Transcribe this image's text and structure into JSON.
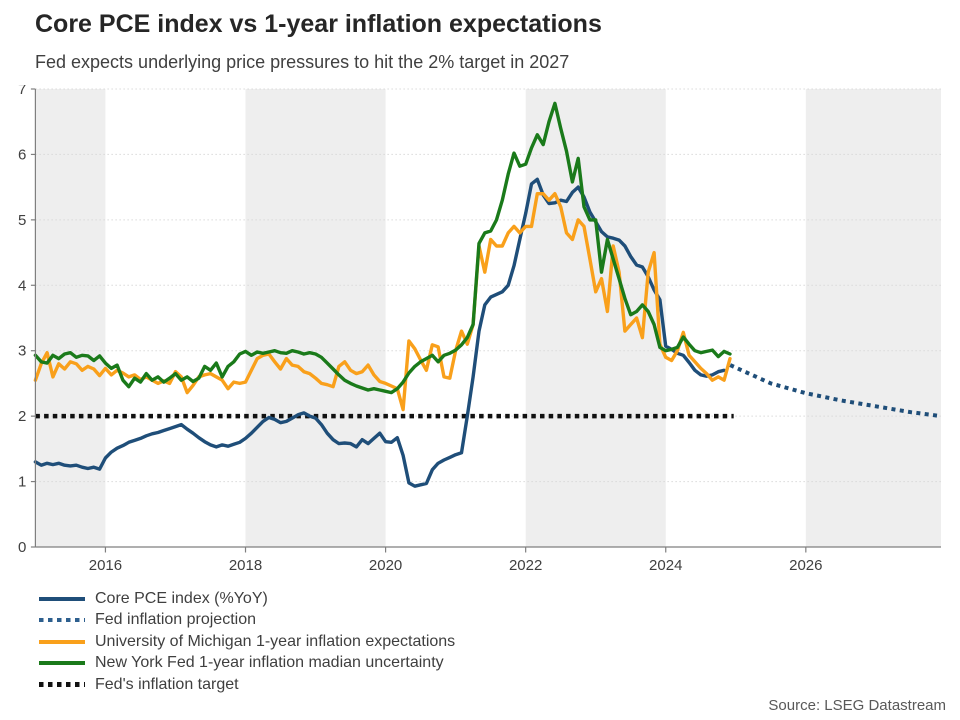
{
  "header": {
    "title": "Core PCE index vs 1-year inflation expectations",
    "subtitle": "Fed expects underlying price pressures to hit the 2% target in 2027"
  },
  "source": "Source: LSEG Datastream",
  "chart_data": {
    "type": "line",
    "title": "Core PCE index vs 1-year inflation expectations",
    "subtitle": "Fed expects underlying price pressures to hit the 2% target in 2027",
    "ylim": [
      0,
      7
    ],
    "x_range": [
      2015,
      2027.93
    ],
    "yticks": [
      0,
      1,
      2,
      3,
      4,
      5,
      6,
      7
    ],
    "xticks": [
      2016,
      2018,
      2020,
      2022,
      2024,
      2026
    ],
    "grid": "horizontal-dotted",
    "band_color": "#eeeeee",
    "bands": [
      [
        2015,
        2016
      ],
      [
        2018,
        2020
      ],
      [
        2022,
        2024
      ],
      [
        2026,
        2027.93
      ]
    ],
    "series": [
      {
        "id": "core-pce-line",
        "name": "Core PCE index (%YoY)",
        "color": "#1f4e79",
        "style": "solid",
        "start_year": 2015,
        "frequency": "monthly",
        "monthly_values": [
          1.3,
          1.25,
          1.28,
          1.26,
          1.28,
          1.25,
          1.24,
          1.25,
          1.22,
          1.2,
          1.22,
          1.19,
          1.36,
          1.45,
          1.51,
          1.55,
          1.6,
          1.63,
          1.66,
          1.7,
          1.73,
          1.75,
          1.78,
          1.81,
          1.84,
          1.87,
          1.8,
          1.74,
          1.67,
          1.61,
          1.56,
          1.53,
          1.56,
          1.54,
          1.57,
          1.6,
          1.66,
          1.74,
          1.83,
          1.92,
          1.98,
          1.95,
          1.9,
          1.92,
          1.97,
          2.02,
          2.05,
          2.0,
          1.97,
          1.87,
          1.74,
          1.64,
          1.58,
          1.59,
          1.58,
          1.53,
          1.64,
          1.58,
          1.66,
          1.74,
          1.61,
          1.6,
          1.67,
          1.4,
          0.98,
          0.93,
          0.95,
          0.97,
          1.18,
          1.28,
          1.33,
          1.37,
          1.41,
          1.44,
          2.0,
          2.6,
          3.3,
          3.7,
          3.82,
          3.86,
          3.9,
          4.0,
          4.3,
          4.7,
          5.1,
          5.55,
          5.62,
          5.38,
          5.25,
          5.26,
          5.3,
          5.28,
          5.42,
          5.5,
          5.35,
          5.12,
          4.97,
          4.82,
          4.74,
          4.72,
          4.69,
          4.6,
          4.44,
          4.31,
          4.28,
          4.13,
          3.93,
          3.78,
          3.07,
          3.02,
          2.96,
          2.93,
          2.82,
          2.7,
          2.63,
          2.61,
          2.63,
          2.68,
          2.7
        ]
      },
      {
        "id": "umich-expectations-line",
        "name": "University of Michigan 1-year inflation expectations",
        "color": "#f9a01b",
        "style": "solid",
        "start_year": 2015,
        "frequency": "monthly",
        "monthly_values": [
          2.55,
          2.8,
          2.97,
          2.6,
          2.8,
          2.72,
          2.83,
          2.8,
          2.7,
          2.76,
          2.72,
          2.62,
          2.73,
          2.63,
          2.7,
          2.66,
          2.6,
          2.63,
          2.56,
          2.6,
          2.55,
          2.5,
          2.54,
          2.5,
          2.68,
          2.6,
          2.36,
          2.47,
          2.6,
          2.63,
          2.65,
          2.6,
          2.55,
          2.42,
          2.52,
          2.5,
          2.52,
          2.7,
          2.88,
          2.93,
          2.95,
          2.83,
          2.72,
          2.88,
          2.78,
          2.76,
          2.68,
          2.65,
          2.58,
          2.5,
          2.48,
          2.45,
          2.76,
          2.83,
          2.7,
          2.65,
          2.68,
          2.78,
          2.63,
          2.53,
          2.5,
          2.46,
          2.42,
          2.1,
          3.15,
          3.03,
          2.86,
          2.7,
          3.09,
          3.06,
          2.6,
          2.58,
          3.0,
          3.3,
          3.1,
          3.4,
          4.6,
          4.2,
          4.7,
          4.6,
          4.6,
          4.8,
          4.9,
          4.8,
          4.9,
          4.9,
          5.4,
          5.4,
          5.3,
          5.4,
          5.2,
          4.8,
          4.7,
          5.0,
          4.9,
          4.4,
          3.9,
          4.1,
          3.6,
          4.6,
          4.2,
          3.3,
          3.4,
          3.5,
          3.2,
          4.2,
          4.5,
          3.1,
          2.9,
          2.85,
          3.0,
          3.28,
          2.93,
          2.83,
          2.73,
          2.65,
          2.55,
          2.6,
          2.55,
          2.88
        ]
      },
      {
        "id": "nyfed-expectations-line",
        "name": "New York Fed 1-year inflation madian uncertainty",
        "color": "#1a7a1a",
        "style": "solid",
        "start_year": 2015,
        "frequency": "monthly",
        "monthly_values": [
          2.93,
          2.83,
          2.81,
          2.93,
          2.88,
          2.95,
          2.97,
          2.9,
          2.93,
          2.92,
          2.85,
          2.92,
          2.81,
          2.73,
          2.78,
          2.55,
          2.45,
          2.58,
          2.52,
          2.65,
          2.55,
          2.6,
          2.52,
          2.58,
          2.65,
          2.55,
          2.6,
          2.53,
          2.58,
          2.76,
          2.7,
          2.81,
          2.6,
          2.76,
          2.83,
          2.95,
          2.99,
          2.93,
          2.98,
          2.96,
          2.98,
          3.0,
          2.97,
          2.96,
          3.0,
          2.98,
          2.95,
          2.97,
          2.95,
          2.9,
          2.81,
          2.72,
          2.63,
          2.55,
          2.5,
          2.46,
          2.43,
          2.4,
          2.42,
          2.4,
          2.38,
          2.36,
          2.42,
          2.52,
          2.66,
          2.76,
          2.83,
          2.88,
          2.93,
          2.83,
          2.93,
          2.96,
          3.01,
          3.09,
          3.2,
          3.4,
          4.64,
          4.8,
          4.83,
          5.0,
          5.3,
          5.7,
          6.02,
          5.82,
          5.85,
          6.1,
          6.3,
          6.15,
          6.5,
          6.78,
          6.4,
          6.05,
          5.58,
          5.94,
          5.2,
          5.0,
          5.0,
          4.2,
          4.7,
          4.4,
          4.1,
          3.8,
          3.55,
          3.6,
          3.7,
          3.6,
          3.4,
          3.05,
          3.0,
          3.02,
          3.05,
          3.21,
          3.1,
          3.0,
          2.97,
          2.99,
          3.01,
          2.91,
          2.99,
          2.95
        ]
      }
    ],
    "projection": {
      "id": "fed-projection-line",
      "name": "Fed inflation projection",
      "color": "#1f4e79",
      "style": "dotted",
      "points": [
        [
          2024.92,
          2.78
        ],
        [
          2025.5,
          2.5
        ],
        [
          2026.0,
          2.35
        ],
        [
          2026.5,
          2.24
        ],
        [
          2027.0,
          2.15
        ],
        [
          2027.5,
          2.06
        ],
        [
          2027.93,
          2.0
        ]
      ]
    },
    "target": {
      "id": "fed-target-line",
      "name": "Fed's inflation target",
      "color": "#111111",
      "style": "dotted",
      "value": 2.0,
      "x_start": 2015,
      "x_end": 2024.97
    },
    "legend": [
      {
        "label": "Core PCE index (%YoY)",
        "color": "#1f4e79",
        "style": "solid"
      },
      {
        "label": "Fed inflation projection",
        "color": "#2d5f8e",
        "style": "dotted"
      },
      {
        "label": "University of Michigan 1-year inflation expectations",
        "color": "#f9a01b",
        "style": "solid"
      },
      {
        "label": "New York Fed 1-year inflation madian uncertainty",
        "color": "#1a7a1a",
        "style": "solid"
      },
      {
        "label": "Fed's inflation target",
        "color": "#111111",
        "style": "dotted"
      }
    ]
  }
}
